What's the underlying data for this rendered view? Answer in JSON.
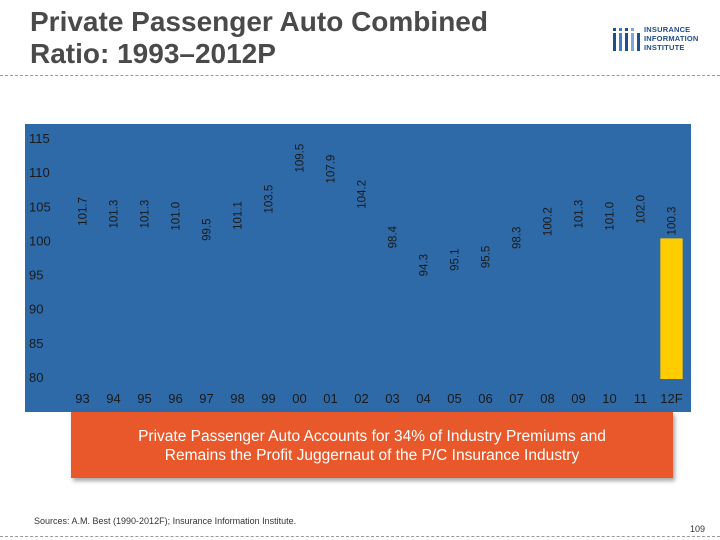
{
  "slide": {
    "title_line1": "Private Passenger Auto Combined",
    "title_line2": "Ratio: 1993–2012P",
    "logo": {
      "line1": "INSURANCE",
      "line2": "INFORMATION",
      "line3": "INSTITUTE",
      "color": "#1f4e8c",
      "icon": "iii-logo-icon"
    },
    "callout_line1": "Private Passenger Auto Accounts for 34% of Industry Premiums and",
    "callout_line2": "Remains the Profit Juggernaut of the P/C Insurance Industry",
    "source": "Sources: A.M. Best (1990-2012F); Insurance Information Institute.",
    "page_number": "109"
  },
  "colors": {
    "plot_bg": "#2f6aa8",
    "axis_text": "#1a1a1a",
    "highlight_bar": "#ffcc00",
    "callout_bg": "#e8582a",
    "title": "#4a4a4a"
  },
  "chart_data": {
    "type": "bar",
    "title": "Private Passenger Auto Combined Ratio: 1993–2012P",
    "xlabel": "",
    "ylabel": "",
    "ylim": [
      80,
      115
    ],
    "yticks": [
      80,
      85,
      90,
      95,
      100,
      105,
      110,
      115
    ],
    "categories": [
      "93",
      "94",
      "95",
      "96",
      "97",
      "98",
      "99",
      "00",
      "01",
      "02",
      "03",
      "04",
      "05",
      "06",
      "07",
      "08",
      "09",
      "10",
      "11",
      "12F"
    ],
    "values": [
      101.7,
      101.3,
      101.3,
      101.0,
      99.5,
      101.1,
      103.5,
      109.5,
      107.9,
      104.2,
      98.4,
      94.3,
      95.1,
      95.5,
      98.3,
      100.2,
      101.3,
      101.0,
      102.0,
      100.3
    ],
    "value_labels": [
      "101.7",
      "101.3",
      "101.3",
      "101.0",
      "99.5",
      "101.1",
      "103.5",
      "109.5",
      "107.9",
      "104.2",
      "98.4",
      "94.3",
      "95.1",
      "95.5",
      "98.3",
      "100.2",
      "101.3",
      "101.0",
      "102.0",
      "100.3"
    ],
    "highlight_index": 19,
    "grid": false,
    "legend": "none"
  }
}
